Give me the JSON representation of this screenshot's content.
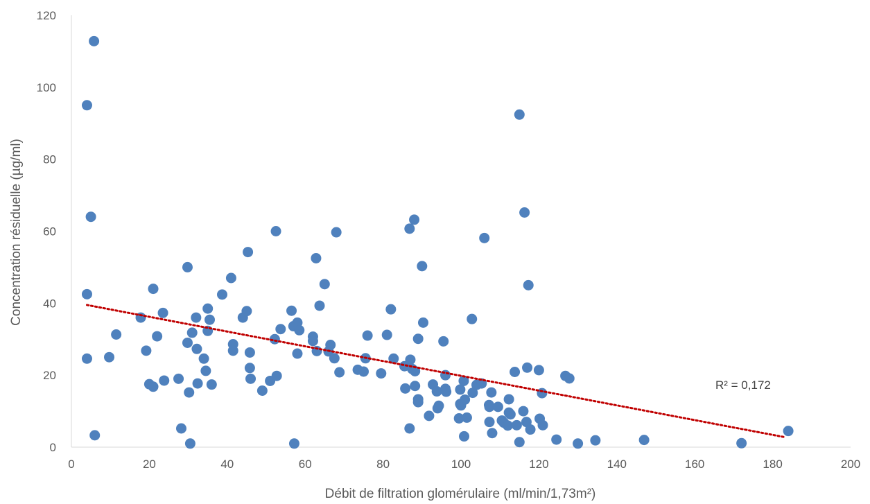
{
  "chart_data": {
    "type": "scatter",
    "title": "",
    "xlabel": "Débit de filtration glomérulaire (ml/min/1,73m²)",
    "ylabel": "Concentration résiduelle (µg/ml)",
    "xlim": [
      0,
      200
    ],
    "ylim": [
      0,
      120
    ],
    "xticks": [
      "0",
      "20",
      "40",
      "60",
      "80",
      "100",
      "120",
      "140",
      "160",
      "180",
      "200"
    ],
    "yticks": [
      "0",
      "20",
      "40",
      "60",
      "80",
      "100",
      "120"
    ],
    "grid": false,
    "legend": "none",
    "colors": {
      "points": "#4f81bd",
      "trendline": "#c00000",
      "axis": "#d9d9d9",
      "text": "#595959"
    },
    "trendline": {
      "type": "linear",
      "x": [
        4,
        183
      ],
      "y": [
        39.5,
        2.8
      ],
      "r2_label": "R² = 0,172"
    },
    "points": [
      [
        5.8,
        112.8
      ],
      [
        4,
        95
      ],
      [
        5,
        64
      ],
      [
        4,
        42.5
      ],
      [
        4,
        24.6
      ],
      [
        6,
        3.3
      ],
      [
        9.7,
        25
      ],
      [
        11.5,
        31.3
      ],
      [
        17.8,
        36
      ],
      [
        19.2,
        26.8
      ],
      [
        20,
        17.5
      ],
      [
        21,
        44
      ],
      [
        21,
        16.8
      ],
      [
        22,
        30.8
      ],
      [
        23.5,
        37.3
      ],
      [
        23.8,
        18.5
      ],
      [
        27.5,
        19
      ],
      [
        28.2,
        5.2
      ],
      [
        29.8,
        50
      ],
      [
        29.8,
        29
      ],
      [
        30.2,
        15.2
      ],
      [
        30.5,
        1
      ],
      [
        31,
        31.8
      ],
      [
        32,
        36
      ],
      [
        32.2,
        27.3
      ],
      [
        32.4,
        17.7
      ],
      [
        34,
        24.6
      ],
      [
        34.5,
        21.2
      ],
      [
        35,
        38.5
      ],
      [
        35,
        32.3
      ],
      [
        35.5,
        35.4
      ],
      [
        36,
        17.4
      ],
      [
        38.7,
        42.4
      ],
      [
        41,
        47
      ],
      [
        41.5,
        28.6
      ],
      [
        41.5,
        26.8
      ],
      [
        44,
        36
      ],
      [
        45,
        37.8
      ],
      [
        45.3,
        54.2
      ],
      [
        45.8,
        26.3
      ],
      [
        45.8,
        22
      ],
      [
        46,
        19
      ],
      [
        49,
        15.7
      ],
      [
        51,
        18.4
      ],
      [
        52.2,
        30
      ],
      [
        52.5,
        60
      ],
      [
        52.7,
        19.8
      ],
      [
        53.7,
        32.8
      ],
      [
        56.5,
        37.9
      ],
      [
        57,
        33.6
      ],
      [
        57.2,
        1
      ],
      [
        58,
        34.6
      ],
      [
        58,
        26
      ],
      [
        58.5,
        32.5
      ],
      [
        62,
        30.7
      ],
      [
        62,
        29.5
      ],
      [
        62.8,
        52.5
      ],
      [
        63,
        26.7
      ],
      [
        63.7,
        39.3
      ],
      [
        65,
        45.3
      ],
      [
        66,
        26.6
      ],
      [
        66.5,
        28.4
      ],
      [
        67.5,
        24.7
      ],
      [
        68,
        59.7
      ],
      [
        68.8,
        20.8
      ],
      [
        73.5,
        21.5
      ],
      [
        75,
        21
      ],
      [
        75.5,
        24.7
      ],
      [
        76,
        31
      ],
      [
        79.5,
        20.5
      ],
      [
        81,
        31.2
      ],
      [
        82,
        38.3
      ],
      [
        82.7,
        24.6
      ],
      [
        85.5,
        22.5
      ],
      [
        85.7,
        16.3
      ],
      [
        86.8,
        60.7
      ],
      [
        86.8,
        5.2
      ],
      [
        87,
        24.3
      ],
      [
        87.5,
        21.7
      ],
      [
        88,
        63.2
      ],
      [
        88.2,
        21.1
      ],
      [
        88.2,
        17
      ],
      [
        89,
        13.3
      ],
      [
        89,
        12.5
      ],
      [
        89,
        30.1
      ],
      [
        90,
        50.3
      ],
      [
        90.3,
        34.6
      ],
      [
        91.8,
        8.7
      ],
      [
        92.8,
        17.4
      ],
      [
        93.8,
        15.5
      ],
      [
        94,
        10.8
      ],
      [
        94.3,
        11.5
      ],
      [
        95.5,
        29.4
      ],
      [
        96,
        20
      ],
      [
        96,
        16.2
      ],
      [
        96.2,
        15.4
      ],
      [
        99.5,
        8
      ],
      [
        99.8,
        16
      ],
      [
        99.8,
        12
      ],
      [
        100,
        11.6
      ],
      [
        100.7,
        18.4
      ],
      [
        100.8,
        3
      ],
      [
        101,
        13.2
      ],
      [
        101.5,
        8.2
      ],
      [
        102.8,
        35.6
      ],
      [
        103,
        15.1
      ],
      [
        104,
        17.3
      ],
      [
        105.3,
        17.7
      ],
      [
        106,
        58.1
      ],
      [
        107.2,
        11.7
      ],
      [
        107.3,
        11.2
      ],
      [
        107.3,
        7
      ],
      [
        107.8,
        15.2
      ],
      [
        108,
        3.9
      ],
      [
        109.5,
        11.2
      ],
      [
        110.5,
        7.4
      ],
      [
        111,
        6.8
      ],
      [
        112,
        6
      ],
      [
        112.3,
        13.3
      ],
      [
        112.3,
        9.6
      ],
      [
        112.7,
        9.1
      ],
      [
        113.8,
        20.9
      ],
      [
        114.3,
        6.1
      ],
      [
        115,
        1.4
      ],
      [
        115,
        92.4
      ],
      [
        116,
        10
      ],
      [
        116.3,
        65.2
      ],
      [
        116.8,
        7
      ],
      [
        117,
        22.1
      ],
      [
        117.3,
        45
      ],
      [
        117.8,
        4.9
      ],
      [
        120,
        21.4
      ],
      [
        120.2,
        7.9
      ],
      [
        120.8,
        15
      ],
      [
        121,
        6.1
      ],
      [
        124.5,
        2.1
      ],
      [
        126.8,
        19.8
      ],
      [
        127.8,
        19.1
      ],
      [
        130,
        1
      ],
      [
        134.5,
        1.9
      ],
      [
        147,
        2
      ],
      [
        172,
        1.1
      ],
      [
        184,
        4.5
      ]
    ]
  }
}
